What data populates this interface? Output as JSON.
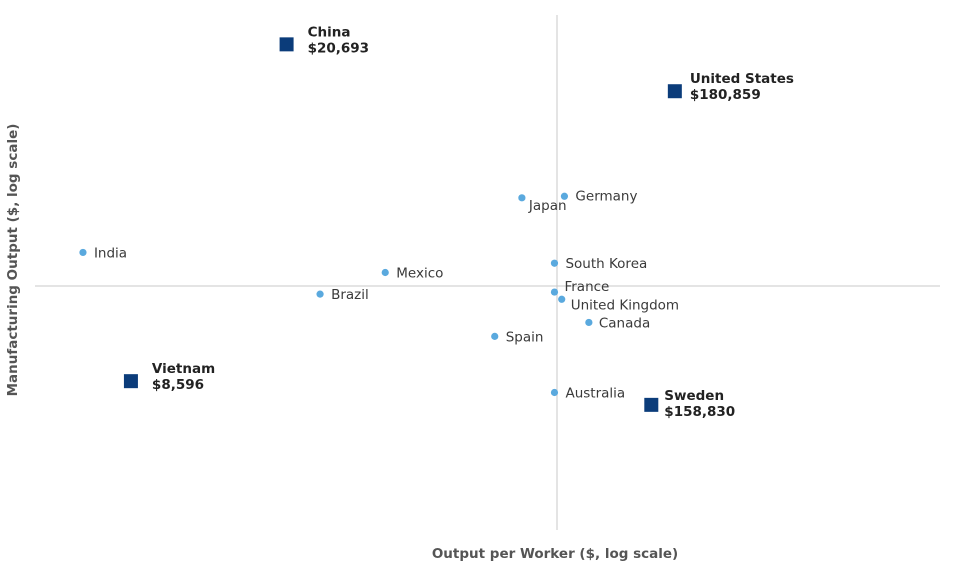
{
  "chart_data": {
    "type": "scatter",
    "xlabel": "Output per Worker ($, log scale)",
    "ylabel": "Manufacturing Output ($, log scale)",
    "title": "",
    "grid": false,
    "legend": "none",
    "xlim": [
      0,
      100
    ],
    "ylim": [
      0,
      100
    ],
    "colors": {
      "highlight": "#0b3c7a",
      "point": "#5aa9de",
      "axis": "#c8c8c8",
      "label": "#3a3a3a"
    },
    "points": [
      {
        "name": "China",
        "value_label": "$20,693",
        "x": 27.8,
        "y": 94.3,
        "highlight": true
      },
      {
        "name": "United States",
        "value_label": "$180,859",
        "x": 70.7,
        "y": 85.2,
        "highlight": true
      },
      {
        "name": "Vietnam",
        "value_label": "$8,596",
        "x": 10.6,
        "y": 28.9,
        "highlight": true
      },
      {
        "name": "Sweden",
        "value_label": "$158,830",
        "x": 68.1,
        "y": 24.3,
        "highlight": true
      },
      {
        "name": "Japan",
        "x": 53.8,
        "y": 64.5
      },
      {
        "name": "Germany",
        "x": 58.5,
        "y": 64.8
      },
      {
        "name": "India",
        "x": 5.3,
        "y": 53.9
      },
      {
        "name": "South Korea",
        "x": 57.4,
        "y": 51.8
      },
      {
        "name": "Mexico",
        "x": 38.7,
        "y": 50.0
      },
      {
        "name": "Brazil",
        "x": 31.5,
        "y": 45.8
      },
      {
        "name": "France",
        "x": 57.4,
        "y": 46.2
      },
      {
        "name": "United Kingdom",
        "x": 58.2,
        "y": 44.8
      },
      {
        "name": "Canada",
        "x": 61.2,
        "y": 40.3
      },
      {
        "name": "Spain",
        "x": 50.8,
        "y": 37.6
      },
      {
        "name": "Australia",
        "x": 57.4,
        "y": 26.7
      }
    ]
  }
}
